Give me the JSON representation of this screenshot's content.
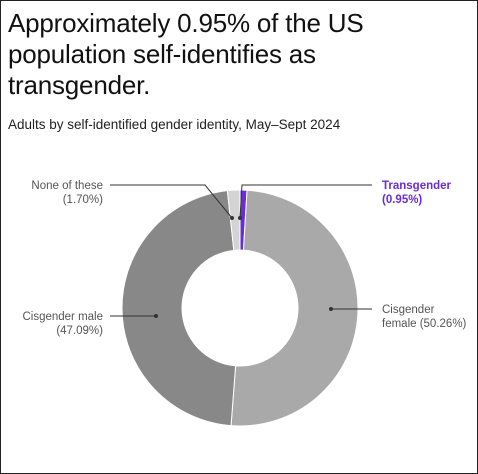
{
  "title": "Approximately 0.95% of the US population self-identifies as transgender.",
  "subtitle": "Adults by self-identified gender identity, May–Sept 2024",
  "chart_data": {
    "type": "pie",
    "donut": true,
    "slices": [
      {
        "name": "Transgender",
        "value": 0.95,
        "display": "(0.95%)",
        "color": "#6a2cd6"
      },
      {
        "name": "Cisgender female",
        "value": 50.26,
        "display": "female (50.26%)",
        "color": "#a9a9a9"
      },
      {
        "name": "Cisgender male",
        "value": 47.09,
        "display": "(47.09%)",
        "color": "#888888"
      },
      {
        "name": "None of these",
        "value": 1.7,
        "display": "(1.70%)",
        "color": "#d4d4d4"
      }
    ]
  },
  "labels": {
    "transgender_name": "Transgender",
    "transgender_value": "(0.95%)",
    "female_name": "Cisgender",
    "female_value": "female (50.26%)",
    "male_name": "Cisgender male",
    "male_value": "(47.09%)",
    "none_name": "None of these",
    "none_value": "(1.70%)"
  }
}
